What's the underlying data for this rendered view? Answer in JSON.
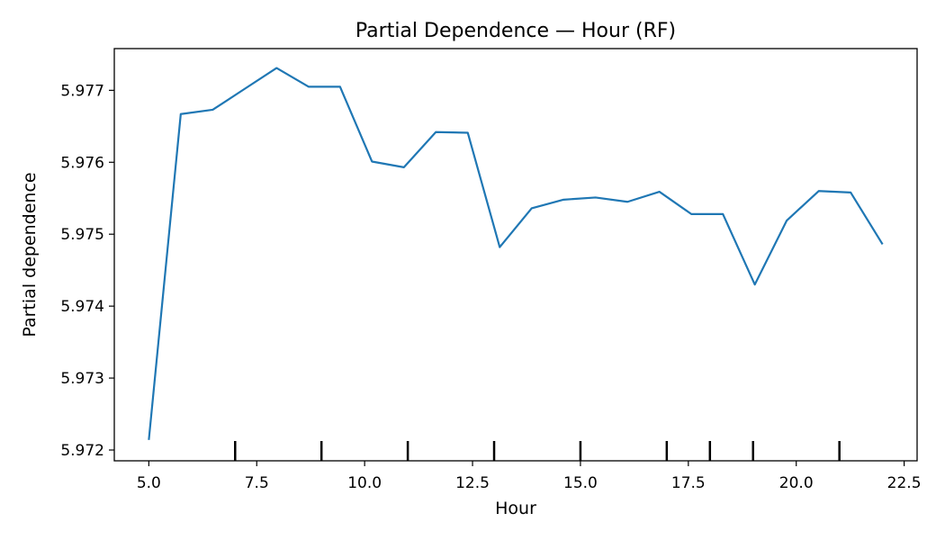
{
  "chart_data": {
    "type": "line",
    "title": "Partial Dependence — Hour (RF)",
    "xlabel": "Hour",
    "ylabel": "Partial dependence",
    "xlim": [
      4.2,
      22.8
    ],
    "ylim": [
      5.97185,
      5.97758
    ],
    "xticks": [
      5.0,
      7.5,
      10.0,
      12.5,
      15.0,
      17.5,
      20.0,
      22.5
    ],
    "xtick_labels": [
      "5.0",
      "7.5",
      "10.0",
      "12.5",
      "15.0",
      "17.5",
      "20.0",
      "22.5"
    ],
    "yticks": [
      5.972,
      5.973,
      5.974,
      5.975,
      5.976,
      5.977
    ],
    "ytick_labels": [
      "5.972",
      "5.973",
      "5.974",
      "5.975",
      "5.976",
      "5.977"
    ],
    "grid": false,
    "series": [
      {
        "color": "#1f77b4",
        "x": [
          5.0,
          5.74,
          6.48,
          7.22,
          7.96,
          8.7,
          9.43,
          10.17,
          10.91,
          11.65,
          12.39,
          13.13,
          13.87,
          14.61,
          15.35,
          16.09,
          16.83,
          17.57,
          18.3,
          19.04,
          19.78,
          20.52,
          21.26,
          22.0
        ],
        "y": [
          5.97214,
          5.97667,
          5.97673,
          5.97702,
          5.97731,
          5.97705,
          5.97705,
          5.97601,
          5.97593,
          5.97642,
          5.97641,
          5.97482,
          5.97536,
          5.97548,
          5.97551,
          5.97545,
          5.97559,
          5.97528,
          5.97528,
          5.9743,
          5.97519,
          5.9756,
          5.97558,
          5.97486
        ]
      }
    ],
    "rug": [
      7,
      9,
      11,
      13,
      15,
      17,
      18,
      19,
      21
    ]
  }
}
